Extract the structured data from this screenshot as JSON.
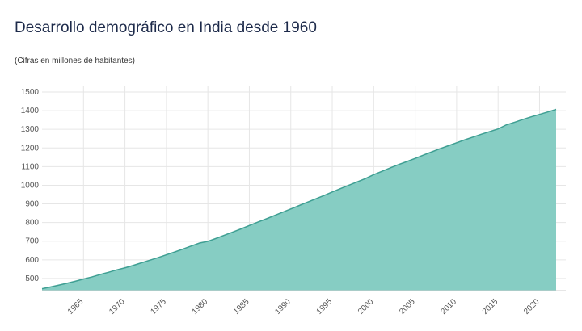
{
  "chart_data": {
    "type": "area",
    "title": "Desarrollo demográfico en India desde 1960",
    "subtitle": "(Cifras en millones de habitantes)",
    "x": [
      1960,
      1961,
      1962,
      1963,
      1964,
      1965,
      1966,
      1967,
      1968,
      1969,
      1970,
      1971,
      1972,
      1973,
      1974,
      1975,
      1976,
      1977,
      1978,
      1979,
      1980,
      1981,
      1982,
      1983,
      1984,
      1985,
      1986,
      1987,
      1988,
      1989,
      1990,
      1991,
      1992,
      1993,
      1994,
      1995,
      1996,
      1997,
      1998,
      1999,
      2000,
      2001,
      2002,
      2003,
      2004,
      2005,
      2006,
      2007,
      2008,
      2009,
      2010,
      2011,
      2012,
      2013,
      2014,
      2015,
      2016,
      2017,
      2018,
      2019,
      2020,
      2021,
      2022
    ],
    "values": [
      445,
      454,
      464,
      474,
      485,
      497,
      508,
      521,
      533,
      546,
      557,
      570,
      584,
      598,
      612,
      627,
      642,
      658,
      674,
      690,
      699,
      715,
      732,
      749,
      766,
      784,
      802,
      819,
      837,
      855,
      873,
      891,
      909,
      927,
      945,
      964,
      982,
      1000,
      1018,
      1036,
      1057,
      1075,
      1093,
      1111,
      1127,
      1144,
      1162,
      1179,
      1196,
      1212,
      1228,
      1244,
      1259,
      1274,
      1288,
      1302,
      1324,
      1338,
      1353,
      1367,
      1380,
      1393,
      1407
    ],
    "color": "#86cdc3",
    "line_color": "#3f9f93",
    "xlim": [
      1960,
      2022
    ],
    "xticks": [
      1965,
      1970,
      1975,
      1980,
      1985,
      1990,
      1995,
      2000,
      2005,
      2010,
      2015,
      2020
    ],
    "ylim": [
      400,
      1500
    ],
    "yticks": [
      500,
      600,
      700,
      800,
      900,
      1000,
      1100,
      1200,
      1300,
      1400,
      1500
    ],
    "grid": true
  }
}
